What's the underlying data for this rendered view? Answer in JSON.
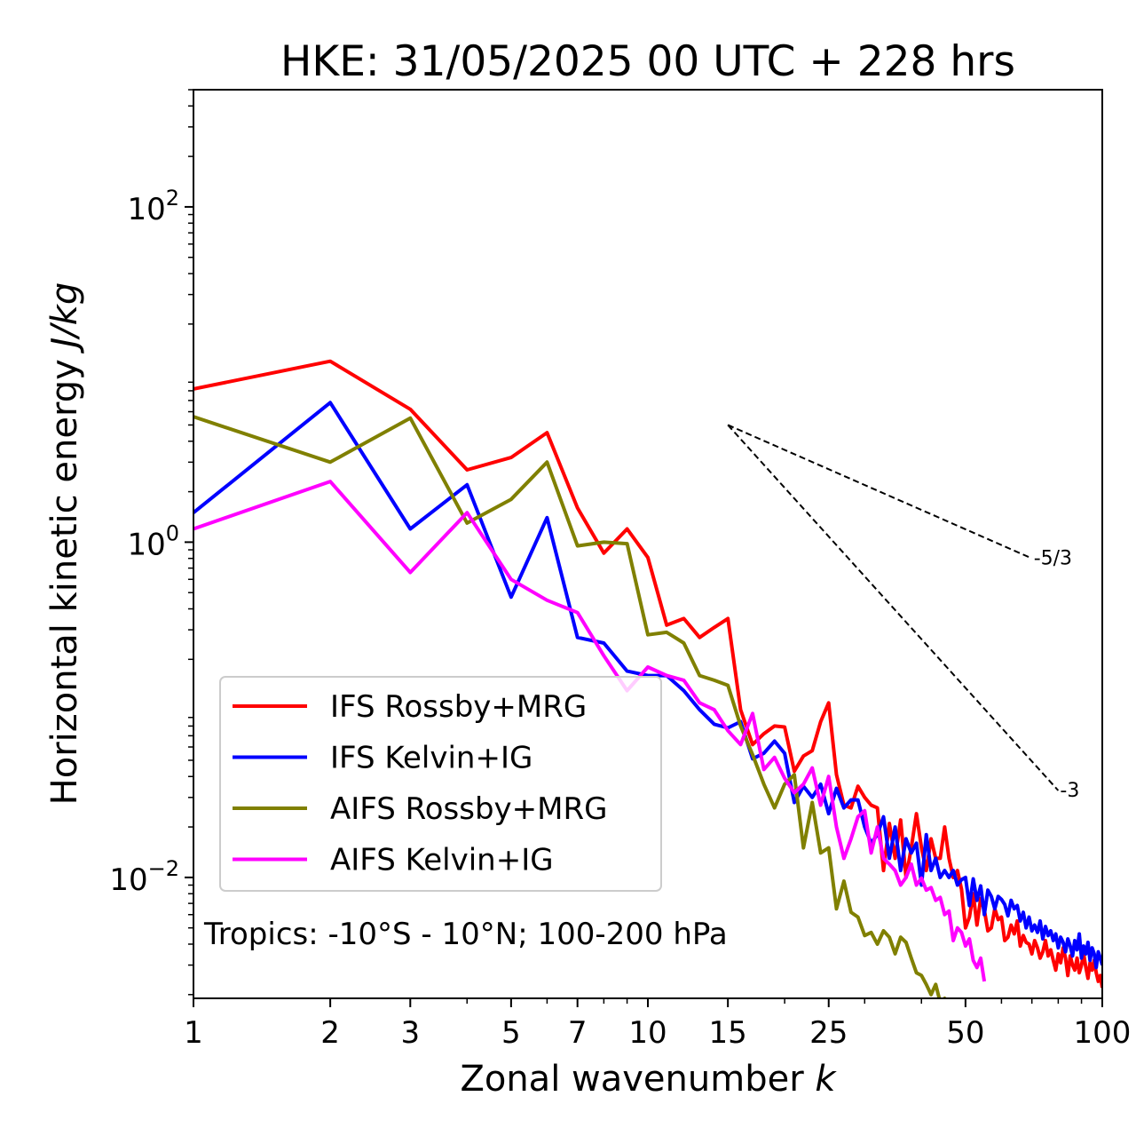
{
  "chart_data": {
    "type": "line",
    "title": "HKE: 31/05/2025 00 UTC + 228 hrs",
    "xlabel": "Zonal wavenumber",
    "xlabel_var": "k",
    "ylabel": "Horizontal kinetic energy",
    "ylabel_unit": "J/kg",
    "xscale": "log",
    "yscale": "log",
    "xlim": [
      1,
      100
    ],
    "ylim": [
      0.0019,
      500
    ],
    "x_ticks": [
      1,
      2,
      3,
      5,
      7,
      10,
      15,
      25,
      50,
      100
    ],
    "x_tick_labels": [
      "1",
      "2",
      "3",
      "5",
      "7",
      "10",
      "15",
      "25",
      "50",
      "100"
    ],
    "y_ticks": [
      0.01,
      1,
      100
    ],
    "y_tick_labels": [
      {
        "base": "10",
        "exp": "−2"
      },
      {
        "base": "10",
        "exp": "0"
      },
      {
        "base": "10",
        "exp": "2"
      }
    ],
    "grid": false,
    "legend": "lower-left",
    "annotation": "Tropics: -10°S - 10°N; 100-200 hPa",
    "reference_lines": [
      {
        "label": "-5/3",
        "slope": -1.6667,
        "x": [
          15,
          70
        ],
        "y": [
          5.0,
          0.8
        ]
      },
      {
        "label": "-3",
        "slope": -3,
        "x": [
          15,
          80
        ],
        "y": [
          5.0,
          0.033
        ]
      }
    ],
    "series": [
      {
        "name": "IFS Rossby+MRG",
        "color": "#ff0000",
        "x": [
          1,
          2,
          3,
          4,
          5,
          6,
          7,
          8,
          9,
          10,
          11,
          12,
          13,
          14,
          15,
          16,
          17,
          18,
          19,
          20,
          21,
          22,
          23,
          24,
          25,
          26,
          27,
          28,
          29,
          30,
          31,
          32,
          33,
          34,
          35,
          36,
          37,
          38,
          39,
          40,
          41,
          42,
          43,
          44,
          45,
          46,
          47,
          48,
          49,
          50,
          51,
          52,
          53,
          54,
          55,
          56,
          57,
          58,
          59,
          60,
          61,
          62,
          63,
          64,
          65,
          66,
          67,
          68,
          69,
          70,
          71,
          72,
          73,
          74,
          75,
          76,
          77,
          78,
          79,
          80,
          81,
          82,
          83,
          84,
          85,
          86,
          87,
          88,
          89,
          90,
          91,
          92,
          93,
          94,
          95,
          96,
          97,
          98,
          99,
          100
        ],
        "values": [
          8.2,
          12,
          6.2,
          2.7,
          3.2,
          4.5,
          1.6,
          0.86,
          1.2,
          0.81,
          0.32,
          0.35,
          0.27,
          0.31,
          0.35,
          0.1,
          0.062,
          0.072,
          0.08,
          0.079,
          0.043,
          0.053,
          0.057,
          0.085,
          0.11,
          0.041,
          0.027,
          0.026,
          0.035,
          0.03,
          0.027,
          0.026,
          0.011,
          0.021,
          0.013,
          0.022,
          0.01,
          0.015,
          0.024,
          0.015,
          0.011,
          0.017,
          0.013,
          0.013,
          0.02,
          0.013,
          0.01,
          0.011,
          0.0085,
          0.005,
          0.0058,
          0.008,
          0.0052,
          0.0075,
          0.0064,
          0.0048,
          0.005,
          0.0065,
          0.0056,
          0.0058,
          0.0042,
          0.0044,
          0.0052,
          0.0046,
          0.0055,
          0.0039,
          0.0045,
          0.0041,
          0.004,
          0.0035,
          0.0042,
          0.0038,
          0.0033,
          0.0036,
          0.0042,
          0.0034,
          0.0037,
          0.0032,
          0.0028,
          0.0035,
          0.0031,
          0.0038,
          0.0033,
          0.0026,
          0.0034,
          0.003,
          0.0028,
          0.0033,
          0.0027,
          0.003,
          0.0035,
          0.0029,
          0.0025,
          0.0031,
          0.0028,
          0.0032,
          0.0027,
          0.0024,
          0.0026,
          0.0022
        ]
      },
      {
        "name": "IFS Kelvin+IG",
        "color": "#0000ff",
        "x": [
          1,
          2,
          3,
          4,
          5,
          6,
          7,
          8,
          9,
          10,
          11,
          12,
          13,
          14,
          15,
          16,
          17,
          18,
          19,
          20,
          21,
          22,
          23,
          24,
          25,
          26,
          27,
          28,
          29,
          30,
          31,
          32,
          33,
          34,
          35,
          36,
          37,
          38,
          39,
          40,
          41,
          42,
          43,
          44,
          45,
          46,
          47,
          48,
          49,
          50,
          51,
          52,
          53,
          54,
          55,
          56,
          57,
          58,
          59,
          60,
          61,
          62,
          63,
          64,
          65,
          66,
          67,
          68,
          69,
          70,
          71,
          72,
          73,
          74,
          75,
          76,
          77,
          78,
          79,
          80,
          81,
          82,
          83,
          84,
          85,
          86,
          87,
          88,
          89,
          90,
          91,
          92,
          93,
          94,
          95,
          96,
          97,
          98,
          99,
          100
        ],
        "values": [
          1.5,
          6.8,
          1.2,
          2.2,
          0.47,
          1.4,
          0.27,
          0.25,
          0.17,
          0.16,
          0.16,
          0.13,
          0.1,
          0.082,
          0.078,
          0.085,
          0.051,
          0.055,
          0.065,
          0.055,
          0.028,
          0.035,
          0.03,
          0.036,
          0.024,
          0.034,
          0.026,
          0.029,
          0.029,
          0.02,
          0.016,
          0.018,
          0.023,
          0.013,
          0.02,
          0.011,
          0.017,
          0.014,
          0.016,
          0.009,
          0.018,
          0.011,
          0.013,
          0.01,
          0.011,
          0.01,
          0.011,
          0.009,
          0.0097,
          0.01,
          0.0068,
          0.0098,
          0.0073,
          0.0089,
          0.006,
          0.0084,
          0.0077,
          0.0065,
          0.0077,
          0.0074,
          0.0069,
          0.0059,
          0.0073,
          0.0065,
          0.0068,
          0.0055,
          0.0062,
          0.005,
          0.0058,
          0.0048,
          0.0052,
          0.0047,
          0.0055,
          0.0043,
          0.0051,
          0.0045,
          0.0048,
          0.0042,
          0.0046,
          0.0038,
          0.0044,
          0.0041,
          0.0036,
          0.0043,
          0.0039,
          0.0034,
          0.0042,
          0.0037,
          0.0046,
          0.0033,
          0.0039,
          0.0035,
          0.0041,
          0.0032,
          0.0038,
          0.0035,
          0.0029,
          0.0036,
          0.0033,
          0.003
        ]
      },
      {
        "name": "AIFS Rossby+MRG",
        "color": "#808000",
        "x": [
          1,
          2,
          3,
          4,
          5,
          6,
          7,
          8,
          9,
          10,
          11,
          12,
          13,
          14,
          15,
          16,
          17,
          18,
          19,
          20,
          21,
          22,
          23,
          24,
          25,
          26,
          27,
          28,
          29,
          30,
          31,
          32,
          33,
          34,
          35,
          36,
          37,
          38,
          39,
          40,
          41,
          42,
          43,
          44,
          45,
          46,
          47,
          48
        ],
        "values": [
          5.6,
          3.0,
          5.5,
          1.3,
          1.8,
          3.0,
          0.95,
          1.0,
          0.98,
          0.28,
          0.29,
          0.25,
          0.16,
          0.15,
          0.14,
          0.08,
          0.054,
          0.036,
          0.026,
          0.036,
          0.041,
          0.015,
          0.028,
          0.014,
          0.015,
          0.0065,
          0.0095,
          0.0062,
          0.0058,
          0.0045,
          0.0047,
          0.004,
          0.0048,
          0.0044,
          0.0035,
          0.0044,
          0.0041,
          0.0033,
          0.0027,
          0.0026,
          0.0023,
          0.002,
          0.0023,
          0.0018,
          0.0019,
          0.0015,
          0.0014,
          0.0012
        ]
      },
      {
        "name": "AIFS Kelvin+IG",
        "color": "#ff00ff",
        "x": [
          1,
          2,
          3,
          4,
          5,
          6,
          7,
          8,
          9,
          10,
          11,
          12,
          13,
          14,
          15,
          16,
          17,
          18,
          19,
          20,
          21,
          22,
          23,
          24,
          25,
          26,
          27,
          28,
          29,
          30,
          31,
          32,
          33,
          34,
          35,
          36,
          37,
          38,
          39,
          40,
          41,
          42,
          43,
          44,
          45,
          46,
          47,
          48,
          49,
          50,
          51,
          52,
          53,
          54,
          55
        ],
        "values": [
          1.2,
          2.3,
          0.66,
          1.5,
          0.6,
          0.45,
          0.38,
          0.21,
          0.13,
          0.18,
          0.16,
          0.15,
          0.11,
          0.1,
          0.075,
          0.062,
          0.095,
          0.044,
          0.052,
          0.039,
          0.032,
          0.036,
          0.045,
          0.027,
          0.04,
          0.02,
          0.013,
          0.017,
          0.023,
          0.025,
          0.014,
          0.02,
          0.013,
          0.012,
          0.011,
          0.009,
          0.01,
          0.012,
          0.009,
          0.0099,
          0.0084,
          0.0087,
          0.0073,
          0.0076,
          0.006,
          0.0063,
          0.0042,
          0.005,
          0.0047,
          0.0039,
          0.0043,
          0.0032,
          0.0029,
          0.0033,
          0.0024
        ]
      }
    ]
  }
}
